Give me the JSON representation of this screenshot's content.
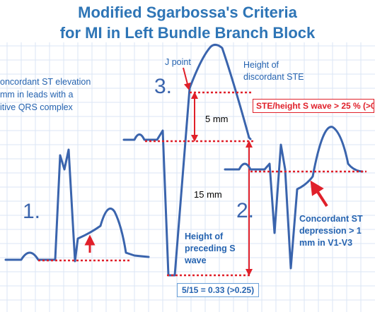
{
  "title": {
    "line1": "Modified Sgarbossa's Criteria",
    "line2": "for MI in Left Bundle Branch Block"
  },
  "criterion1": {
    "number": "1.",
    "text_line1": "oncordant ST elevation",
    "text_line2": "mm in leads with a",
    "text_line3": "itive QRS complex"
  },
  "criterion2": {
    "number": "2.",
    "text_line1": "Concordant ST",
    "text_line2": "depression > 1",
    "text_line3": "mm in V1-V3"
  },
  "criterion3": {
    "number": "3.",
    "j_point": "J point",
    "height_ste_line1": "Height of",
    "height_ste_line2": "discordant STE",
    "ratio_box": "STE/height S wave > 25 % (>0.",
    "label_5mm": "5 mm",
    "label_15mm": "15 mm",
    "height_s_line1": "Height of",
    "height_s_line2": "preceding S",
    "height_s_line3": "wave",
    "calc_box": "5/15 =  0.33 (>0.25)"
  },
  "colors": {
    "title": "#2e75b6",
    "note": "#2563b0",
    "trace": "#3a64ad",
    "reference": "#e0202a",
    "grid": "#dbe6f4"
  }
}
